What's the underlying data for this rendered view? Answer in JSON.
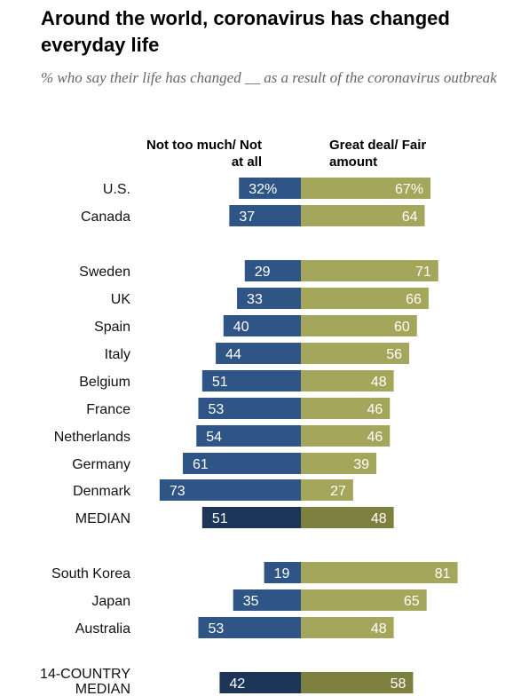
{
  "header": {
    "title": "Around the world, coronavirus has changed everyday life",
    "subtitle": "% who say their life has changed __ as a result of the coronavirus outbreak"
  },
  "colors": {
    "left": "#2e5585",
    "right": "#a4a75b",
    "left_median": "#1c3558",
    "right_median": "#7d803e"
  },
  "chart_data": {
    "type": "bar",
    "orientation": "diverging-horizontal",
    "series": [
      {
        "name": "Not too much/ Not at all",
        "values": [
          32,
          37,
          29,
          33,
          40,
          44,
          51,
          53,
          54,
          61,
          73,
          51,
          19,
          35,
          53,
          42
        ]
      },
      {
        "name": "Great deal/ Fair amount",
        "values": [
          67,
          64,
          71,
          66,
          60,
          56,
          48,
          46,
          46,
          39,
          27,
          48,
          81,
          65,
          48,
          58
        ]
      }
    ],
    "rows": [
      {
        "label": "U.S.",
        "left": 32,
        "right": 67,
        "left_label": "32%",
        "right_label": "67%",
        "median": false
      },
      {
        "label": "Canada",
        "left": 37,
        "right": 64,
        "left_label": "37",
        "right_label": "64",
        "median": false
      },
      {
        "label": "Sweden",
        "left": 29,
        "right": 71,
        "left_label": "29",
        "right_label": "71",
        "median": false
      },
      {
        "label": "UK",
        "left": 33,
        "right": 66,
        "left_label": "33",
        "right_label": "66",
        "median": false
      },
      {
        "label": "Spain",
        "left": 40,
        "right": 60,
        "left_label": "40",
        "right_label": "60",
        "median": false
      },
      {
        "label": "Italy",
        "left": 44,
        "right": 56,
        "left_label": "44",
        "right_label": "56",
        "median": false
      },
      {
        "label": "Belgium",
        "left": 51,
        "right": 48,
        "left_label": "51",
        "right_label": "48",
        "median": false
      },
      {
        "label": "France",
        "left": 53,
        "right": 46,
        "left_label": "53",
        "right_label": "46",
        "median": false
      },
      {
        "label": "Netherlands",
        "left": 54,
        "right": 46,
        "left_label": "54",
        "right_label": "46",
        "median": false
      },
      {
        "label": "Germany",
        "left": 61,
        "right": 39,
        "left_label": "61",
        "right_label": "39",
        "median": false
      },
      {
        "label": "Denmark",
        "left": 73,
        "right": 27,
        "left_label": "73",
        "right_label": "27",
        "median": false
      },
      {
        "label": "MEDIAN",
        "left": 51,
        "right": 48,
        "left_label": "51",
        "right_label": "48",
        "median": true
      },
      {
        "label": "South Korea",
        "left": 19,
        "right": 81,
        "left_label": "19",
        "right_label": "81",
        "median": false
      },
      {
        "label": "Japan",
        "left": 35,
        "right": 65,
        "left_label": "35",
        "right_label": "65",
        "median": false
      },
      {
        "label": "Australia",
        "left": 53,
        "right": 48,
        "left_label": "53",
        "right_label": "48",
        "median": false
      },
      {
        "label": "14-COUNTRY MEDIAN",
        "left": 42,
        "right": 58,
        "left_label": "42",
        "right_label": "58",
        "median": true
      }
    ]
  }
}
